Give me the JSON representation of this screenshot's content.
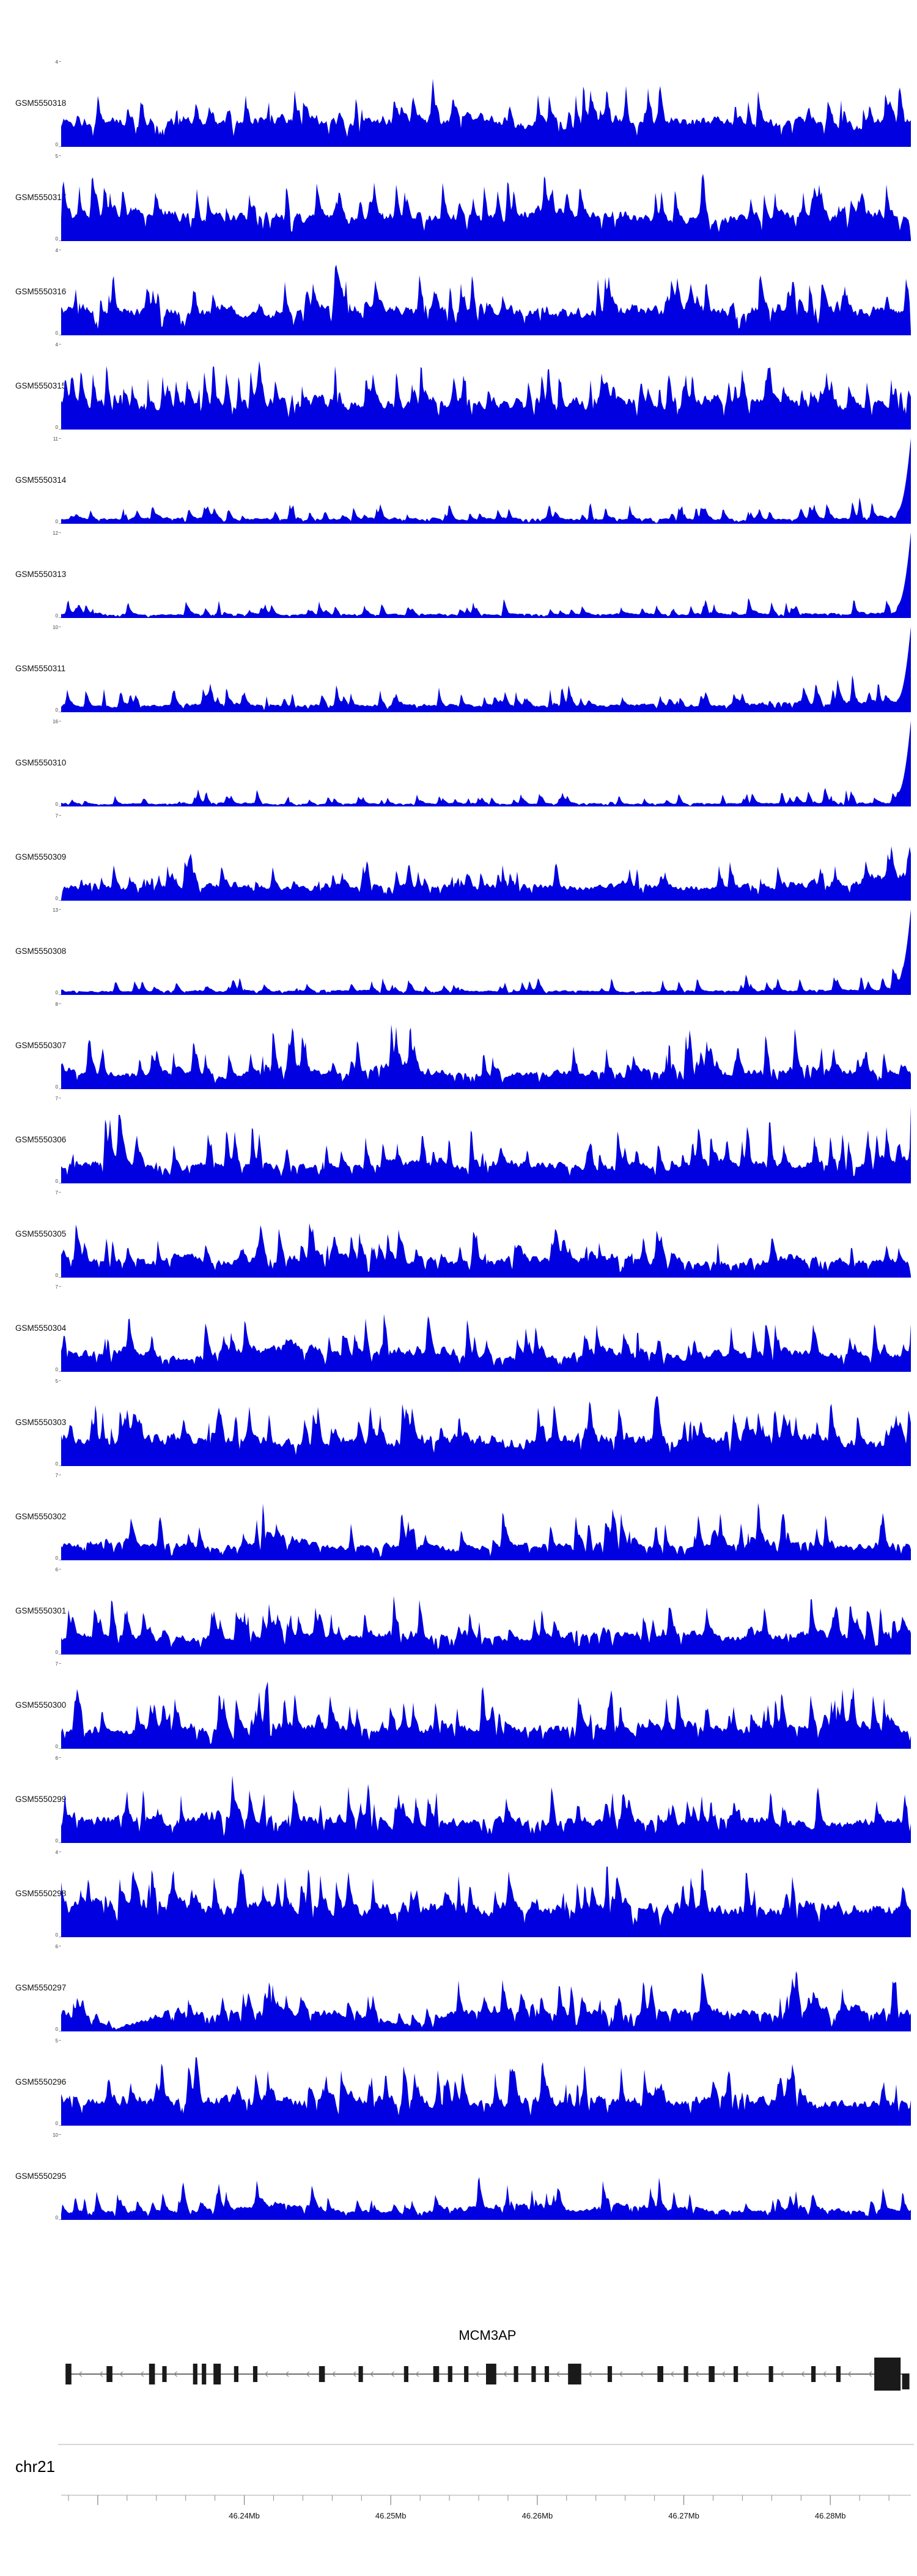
{
  "figure": {
    "background_color": "#ffffff",
    "coverage_fill_color": "#0000e0",
    "gene_color": "#1a1a1a",
    "intron_line_color": "#6e6e6e",
    "arrow_color": "#8c8c8c",
    "axis_line_color": "#aaaaaa",
    "separator_color": "#d6d6d6"
  },
  "chart_data": {
    "type": "area",
    "subtype": "genome-browser-coverage-tracks",
    "title": "",
    "xlabel": "",
    "ylabel": "",
    "grid": false,
    "legend": null,
    "x_axis": {
      "chromosome": "chr21",
      "unit": "Mb",
      "range_mb": [
        46.2275,
        46.2855
      ],
      "major_ticks_mb": [
        46.24,
        46.25,
        46.26,
        46.27,
        46.28
      ],
      "major_tick_labels": [
        "46.24Mb",
        "46.25Mb",
        "46.26Mb",
        "46.27Mb",
        "46.28Mb"
      ],
      "minor_tick_interval_mb": 0.002
    },
    "tracks": [
      {
        "label": "GSM5550318",
        "ylim": [
          0,
          4
        ],
        "seed": 1,
        "fill": 0.55,
        "gap": 0.03,
        "end_spike": 0,
        "envelope": [
          0.8,
          0.9,
          0.8,
          0.85,
          0.9,
          0.8,
          0.85,
          1.0,
          0.85,
          0.8,
          0.9,
          0.85,
          0.8,
          0.9,
          0.85,
          0.8
        ]
      },
      {
        "label": "GSM5550317",
        "ylim": [
          0,
          5
        ],
        "seed": 2,
        "fill": 0.55,
        "gap": 0.03,
        "end_spike": 0,
        "envelope": [
          0.85,
          0.8,
          0.9,
          0.85,
          0.9,
          0.8,
          0.85,
          0.9,
          0.8,
          0.9,
          0.85,
          0.8,
          0.9,
          0.85,
          0.9,
          0.85
        ]
      },
      {
        "label": "GSM5550316",
        "ylim": [
          0,
          4
        ],
        "seed": 3,
        "fill": 0.55,
        "gap": 0.04,
        "end_spike": 0,
        "envelope": [
          0.9,
          0.8,
          0.85,
          0.9,
          0.8,
          0.9,
          0.85,
          0.8,
          0.9,
          0.85,
          0.9,
          0.8,
          0.85,
          0.9,
          0.8,
          0.85
        ]
      },
      {
        "label": "GSM5550315",
        "ylim": [
          0,
          4
        ],
        "seed": 4,
        "fill": 0.55,
        "gap": 0.03,
        "end_spike": 0,
        "envelope": [
          0.85,
          0.9,
          0.8,
          0.85,
          0.9,
          0.85,
          0.8,
          0.9,
          0.85,
          0.8,
          0.9,
          0.85,
          0.9,
          0.8,
          0.85,
          0.9
        ]
      },
      {
        "label": "GSM5550314",
        "ylim": [
          0,
          11
        ],
        "seed": 5,
        "fill": 0.28,
        "gap": 0.06,
        "end_spike": 1,
        "envelope": [
          0.3,
          0.35,
          0.5,
          0.3,
          0.35,
          0.3,
          0.35,
          0.3,
          0.35,
          0.3,
          0.3,
          0.35,
          0.3,
          0.35,
          0.4,
          0.5
        ]
      },
      {
        "label": "GSM5550313",
        "ylim": [
          0,
          12
        ],
        "seed": 6,
        "fill": 0.25,
        "gap": 0.06,
        "end_spike": 1,
        "envelope": [
          0.3,
          0.25,
          0.3,
          0.35,
          0.25,
          0.3,
          0.25,
          0.3,
          0.3,
          0.25,
          0.3,
          0.25,
          0.3,
          0.3,
          0.35,
          0.45
        ]
      },
      {
        "label": "GSM5550311",
        "ylim": [
          0,
          10
        ],
        "seed": 7,
        "fill": 0.33,
        "gap": 0.05,
        "end_spike": 1,
        "envelope": [
          0.4,
          0.35,
          0.4,
          0.45,
          0.35,
          0.4,
          0.45,
          0.4,
          0.35,
          0.4,
          0.45,
          0.4,
          0.45,
          0.5,
          0.55,
          0.6
        ]
      },
      {
        "label": "GSM5550310",
        "ylim": [
          0,
          16
        ],
        "seed": 8,
        "fill": 0.22,
        "gap": 0.06,
        "end_spike": 1,
        "envelope": [
          0.25,
          0.2,
          0.25,
          0.3,
          0.2,
          0.25,
          0.2,
          0.25,
          0.2,
          0.25,
          0.2,
          0.25,
          0.25,
          0.3,
          0.3,
          0.4
        ]
      },
      {
        "label": "GSM5550309",
        "ylim": [
          0,
          7
        ],
        "seed": 9,
        "fill": 0.45,
        "gap": 0.04,
        "end_spike": 0,
        "envelope": [
          0.55,
          0.5,
          0.55,
          0.6,
          0.5,
          0.55,
          0.5,
          0.55,
          0.6,
          0.55,
          0.6,
          0.55,
          0.6,
          0.65,
          0.8,
          1.0
        ]
      },
      {
        "label": "GSM5550308",
        "ylim": [
          0,
          13
        ],
        "seed": 10,
        "fill": 0.25,
        "gap": 0.06,
        "end_spike": 1,
        "envelope": [
          0.3,
          0.25,
          0.3,
          0.25,
          0.3,
          0.35,
          0.25,
          0.3,
          0.25,
          0.3,
          0.25,
          0.3,
          0.3,
          0.35,
          0.4,
          0.5
        ]
      },
      {
        "label": "GSM5550307",
        "ylim": [
          0,
          8
        ],
        "seed": 11,
        "fill": 0.45,
        "gap": 0.05,
        "end_spike": 0,
        "envelope": [
          0.85,
          0.6,
          0.75,
          0.55,
          0.95,
          0.6,
          1.0,
          0.55,
          0.65,
          0.75,
          0.55,
          0.85,
          0.65,
          0.95,
          0.75,
          0.65
        ]
      },
      {
        "label": "GSM5550306",
        "ylim": [
          0,
          7
        ],
        "seed": 12,
        "fill": 0.45,
        "gap": 0.05,
        "end_spike": 0,
        "envelope": [
          0.7,
          0.95,
          0.6,
          0.8,
          0.7,
          0.65,
          0.85,
          0.7,
          0.9,
          0.6,
          0.8,
          0.7,
          1.0,
          0.7,
          0.85,
          0.9
        ]
      },
      {
        "label": "GSM5550305",
        "ylim": [
          0,
          7
        ],
        "seed": 13,
        "fill": 0.45,
        "gap": 0.05,
        "end_spike": 0,
        "envelope": [
          0.85,
          0.7,
          0.8,
          0.65,
          0.75,
          0.85,
          0.7,
          0.65,
          0.8,
          0.75,
          0.85,
          0.7,
          0.65,
          0.8,
          0.7,
          0.6
        ]
      },
      {
        "label": "GSM5550304",
        "ylim": [
          0,
          7
        ],
        "seed": 14,
        "fill": 0.45,
        "gap": 0.05,
        "end_spike": 0,
        "envelope": [
          0.7,
          0.85,
          0.6,
          0.75,
          0.95,
          0.7,
          1.0,
          0.8,
          0.6,
          0.7,
          0.9,
          0.65,
          0.7,
          0.8,
          0.7,
          0.65
        ]
      },
      {
        "label": "GSM5550303",
        "ylim": [
          0,
          5
        ],
        "seed": 15,
        "fill": 0.55,
        "gap": 0.03,
        "end_spike": 0,
        "envelope": [
          0.85,
          0.8,
          0.9,
          0.85,
          0.8,
          0.9,
          0.85,
          0.9,
          0.8,
          0.85,
          0.9,
          0.8,
          0.85,
          0.9,
          0.85,
          0.8
        ]
      },
      {
        "label": "GSM5550302",
        "ylim": [
          0,
          7
        ],
        "seed": 16,
        "fill": 0.4,
        "gap": 0.07,
        "end_spike": 0,
        "envelope": [
          0.6,
          0.85,
          0.7,
          0.6,
          1.0,
          0.6,
          0.7,
          0.6,
          0.7,
          0.65,
          0.8,
          0.6,
          0.9,
          0.7,
          0.6,
          0.7
        ]
      },
      {
        "label": "GSM5550301",
        "ylim": [
          0,
          6
        ],
        "seed": 17,
        "fill": 0.45,
        "gap": 0.05,
        "end_spike": 0,
        "envelope": [
          0.7,
          0.8,
          0.7,
          0.65,
          0.8,
          0.7,
          0.9,
          0.75,
          0.65,
          0.8,
          0.9,
          0.8,
          0.7,
          0.9,
          0.75,
          0.8
        ]
      },
      {
        "label": "GSM5550300",
        "ylim": [
          0,
          7
        ],
        "seed": 18,
        "fill": 0.48,
        "gap": 0.04,
        "end_spike": 0,
        "envelope": [
          0.8,
          0.7,
          0.9,
          0.7,
          1.0,
          0.8,
          0.7,
          0.8,
          0.75,
          0.9,
          0.7,
          0.8,
          0.7,
          0.8,
          0.9,
          0.7
        ]
      },
      {
        "label": "GSM5550299",
        "ylim": [
          0,
          6
        ],
        "seed": 19,
        "fill": 0.5,
        "gap": 0.04,
        "end_spike": 0,
        "envelope": [
          0.8,
          0.9,
          0.8,
          1.0,
          0.8,
          0.9,
          0.7,
          0.8,
          0.9,
          0.75,
          0.8,
          0.7,
          0.9,
          0.8,
          0.75,
          0.9
        ]
      },
      {
        "label": "GSM5550298",
        "ylim": [
          0,
          4
        ],
        "seed": 20,
        "fill": 0.6,
        "gap": 0.02,
        "end_spike": 0,
        "envelope": [
          0.95,
          0.9,
          0.95,
          0.9,
          0.95,
          0.9,
          0.95,
          0.9,
          0.95,
          0.9,
          0.95,
          0.9,
          0.95,
          0.9,
          0.95,
          0.9
        ]
      },
      {
        "label": "GSM5550297",
        "ylim": [
          0,
          6
        ],
        "seed": 21,
        "fill": 0.45,
        "gap": 0.08,
        "end_spike": 0,
        "envelope": [
          0.8,
          0.15,
          0.9,
          0.8,
          0.7,
          0.9,
          0.25,
          0.8,
          1.0,
          0.7,
          0.8,
          0.9,
          0.7,
          0.8,
          0.9,
          0.8
        ]
      },
      {
        "label": "GSM5550296",
        "ylim": [
          0,
          5
        ],
        "seed": 22,
        "fill": 0.55,
        "gap": 0.03,
        "end_spike": 0,
        "envelope": [
          0.85,
          0.8,
          0.9,
          0.85,
          0.8,
          0.85,
          0.9,
          0.8,
          0.85,
          0.9,
          0.85,
          0.8,
          0.9,
          0.85,
          0.8,
          0.85
        ]
      },
      {
        "label": "GSM5550295",
        "ylim": [
          0,
          10
        ],
        "seed": 23,
        "fill": 0.35,
        "gap": 0.06,
        "end_spike": 0,
        "envelope": [
          0.4,
          0.45,
          0.5,
          0.6,
          1.0,
          0.5,
          0.4,
          0.6,
          0.9,
          0.5,
          0.8,
          0.6,
          0.5,
          0.6,
          0.5,
          0.45
        ]
      }
    ],
    "gene_track": {
      "name": "MCM3AP",
      "strand": "-",
      "span_mb": [
        46.2278,
        46.2854
      ],
      "exons": [
        {
          "start": 46.2278,
          "end": 46.2282,
          "size": "tall",
          "dy": 0
        },
        {
          "start": 46.2306,
          "end": 46.231,
          "size": "norm",
          "dy": 0
        },
        {
          "start": 46.2335,
          "end": 46.2339,
          "size": "tall",
          "dy": 0
        },
        {
          "start": 46.2344,
          "end": 46.2347,
          "size": "norm",
          "dy": 0
        },
        {
          "start": 46.2365,
          "end": 46.2368,
          "size": "tall",
          "dy": 0
        },
        {
          "start": 46.2371,
          "end": 46.2374,
          "size": "tall",
          "dy": 0
        },
        {
          "start": 46.2379,
          "end": 46.2384,
          "size": "tall",
          "dy": 0
        },
        {
          "start": 46.2393,
          "end": 46.2396,
          "size": "norm",
          "dy": 0
        },
        {
          "start": 46.2406,
          "end": 46.2409,
          "size": "norm",
          "dy": 0
        },
        {
          "start": 46.2451,
          "end": 46.2455,
          "size": "norm",
          "dy": 0
        },
        {
          "start": 46.2478,
          "end": 46.2481,
          "size": "norm",
          "dy": 0
        },
        {
          "start": 46.2509,
          "end": 46.2512,
          "size": "norm",
          "dy": 0
        },
        {
          "start": 46.2529,
          "end": 46.2533,
          "size": "norm",
          "dy": 0
        },
        {
          "start": 46.2539,
          "end": 46.2542,
          "size": "norm",
          "dy": 0
        },
        {
          "start": 46.255,
          "end": 46.2553,
          "size": "norm",
          "dy": 0
        },
        {
          "start": 46.2565,
          "end": 46.2572,
          "size": "tall",
          "dy": 0
        },
        {
          "start": 46.2584,
          "end": 46.2587,
          "size": "norm",
          "dy": 0
        },
        {
          "start": 46.2596,
          "end": 46.2599,
          "size": "norm",
          "dy": 0
        },
        {
          "start": 46.2605,
          "end": 46.2608,
          "size": "norm",
          "dy": 0
        },
        {
          "start": 46.2621,
          "end": 46.263,
          "size": "tall",
          "dy": 0
        },
        {
          "start": 46.2648,
          "end": 46.2651,
          "size": "norm",
          "dy": 0
        },
        {
          "start": 46.2682,
          "end": 46.2686,
          "size": "norm",
          "dy": 0
        },
        {
          "start": 46.27,
          "end": 46.2703,
          "size": "norm",
          "dy": 0
        },
        {
          "start": 46.2717,
          "end": 46.2721,
          "size": "norm",
          "dy": 0
        },
        {
          "start": 46.2734,
          "end": 46.2737,
          "size": "norm",
          "dy": 0
        },
        {
          "start": 46.2758,
          "end": 46.2761,
          "size": "norm",
          "dy": 0
        },
        {
          "start": 46.2787,
          "end": 46.279,
          "size": "norm",
          "dy": 0
        },
        {
          "start": 46.2804,
          "end": 46.2807,
          "size": "norm",
          "dy": 0
        },
        {
          "start": 46.283,
          "end": 46.2848,
          "size": "big",
          "dy": 0
        },
        {
          "start": 46.2849,
          "end": 46.2854,
          "size": "norm",
          "dy": 12
        }
      ]
    }
  }
}
